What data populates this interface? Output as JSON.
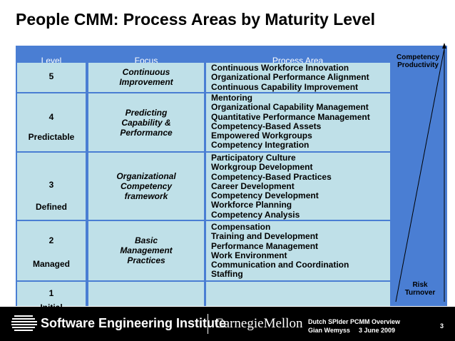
{
  "title": "People CMM: Process Areas by Maturity Level",
  "table": {
    "headers": {
      "level": "Level",
      "focus": "Focus",
      "process": "Process Area"
    },
    "rows": [
      {
        "level": "5",
        "level_name": "",
        "focus": [
          "Continuous",
          "Improvement"
        ],
        "areas": [
          "Continuous Workforce Innovation",
          "Organizational Performance Alignment",
          "Continuous Capability Improvement"
        ]
      },
      {
        "level": "4",
        "level_name": "Predictable",
        "focus": [
          "Predicting",
          "Capability &",
          "Performance"
        ],
        "areas": [
          "Mentoring",
          "Organizational Capability Management",
          "Quantitative Performance Management",
          "Competency-Based Assets",
          "Empowered Workgroups",
          "Competency Integration"
        ]
      },
      {
        "level": "3",
        "level_name": "Defined",
        "focus": [
          "Organizational",
          "Competency",
          "framework"
        ],
        "areas": [
          "Participatory Culture",
          "Workgroup Development",
          "Competency-Based Practices",
          "Career Development",
          "Competency Development",
          "Workforce Planning",
          "Competency Analysis"
        ]
      },
      {
        "level": "2",
        "level_name": "Managed",
        "focus": [
          "Basic",
          "Management",
          "Practices"
        ],
        "areas": [
          "Compensation",
          "Training and Development",
          "Performance Management",
          "Work Environment",
          "Communication and Coordination",
          "Staffing"
        ]
      },
      {
        "level": "1",
        "level_name": "Initial",
        "focus": [],
        "areas": []
      }
    ]
  },
  "side": {
    "top_labels": [
      "Competency",
      "Productivity"
    ],
    "bottom_labels": [
      "Risk",
      "Turnover"
    ]
  },
  "footer": {
    "org": "Software Engineering Institute",
    "university": "CarnegieMellon",
    "event": "Dutch SPIder PCMM Overview",
    "presenter": "Gian Wemyss",
    "date": "3 June 2009",
    "page": "3"
  },
  "colors": {
    "cell": "#bfe0e8",
    "header": "#4a7ed3",
    "side_panel": "#4a7ed3",
    "footer": "#000000"
  }
}
